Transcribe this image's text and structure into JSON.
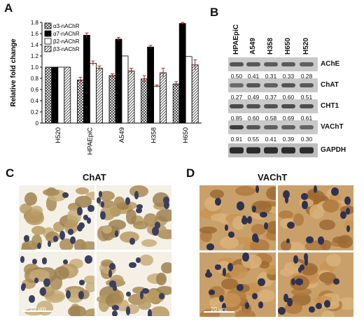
{
  "panels": {
    "A": "A",
    "B": "B",
    "C": "C",
    "D": "D"
  },
  "chart_data": {
    "type": "bar",
    "categories": [
      "H520",
      "HPAEpiC",
      "A549",
      "H358",
      "H650"
    ],
    "ylabel": "Relative fold change",
    "ylim": [
      0,
      1.8
    ],
    "yticks": [
      "0",
      "0.2",
      "0.4",
      "0.6",
      "0.8",
      "1.0",
      "1.2",
      "1.4",
      "1.6",
      "1.8"
    ],
    "legend_position": "top-left",
    "grid": false,
    "series": [
      {
        "name": "α3-nAChR",
        "pattern": "crosshatch",
        "values": [
          1.0,
          0.77,
          0.85,
          0.79,
          0.7
        ],
        "errors": [
          0,
          0.05,
          0.03,
          0.06,
          0.04
        ]
      },
      {
        "name": "α7-nAChR",
        "pattern": "solid-black",
        "values": [
          1.0,
          1.57,
          1.5,
          1.36,
          1.78
        ],
        "errors": [
          0,
          0.04,
          0.03,
          0.03,
          0.02
        ]
      },
      {
        "name": "β2-nAChR",
        "pattern": "white",
        "values": [
          1.0,
          1.07,
          1.2,
          0.66,
          1.19
        ],
        "errors": [
          0,
          0.04,
          0.0,
          0.02,
          0.0
        ]
      },
      {
        "name": "β3-nAChR",
        "pattern": "diagonal",
        "values": [
          1.0,
          0.98,
          0.93,
          0.9,
          1.04
        ],
        "errors": [
          0,
          0.04,
          0.05,
          0.08,
          0.09
        ]
      }
    ]
  },
  "blot": {
    "lanes": [
      "HPAEpiC",
      "A549",
      "H358",
      "H650",
      "H520"
    ],
    "rows": [
      {
        "label": "AChE",
        "values": [
          "0.50",
          "0.41",
          "0.31",
          "0.33",
          "0.28"
        ]
      },
      {
        "label": "ChAT",
        "values": [
          "0.27",
          "0.49",
          "0.37",
          "0.60",
          "0.51"
        ]
      },
      {
        "label": "CHT1",
        "values": [
          "0.85",
          "0.60",
          "0.58",
          "0.69",
          "0.61"
        ]
      },
      {
        "label": "VAChT",
        "values": [
          "0.91",
          "0.55",
          "0.41",
          "0.39",
          "0.30"
        ]
      },
      {
        "label": "GAPDH",
        "values": []
      }
    ]
  },
  "micrographs": {
    "C": {
      "title": "ChAT",
      "scale_label": "20 μm"
    },
    "D": {
      "title": "VAChT",
      "scale_label": "20 μm"
    }
  }
}
